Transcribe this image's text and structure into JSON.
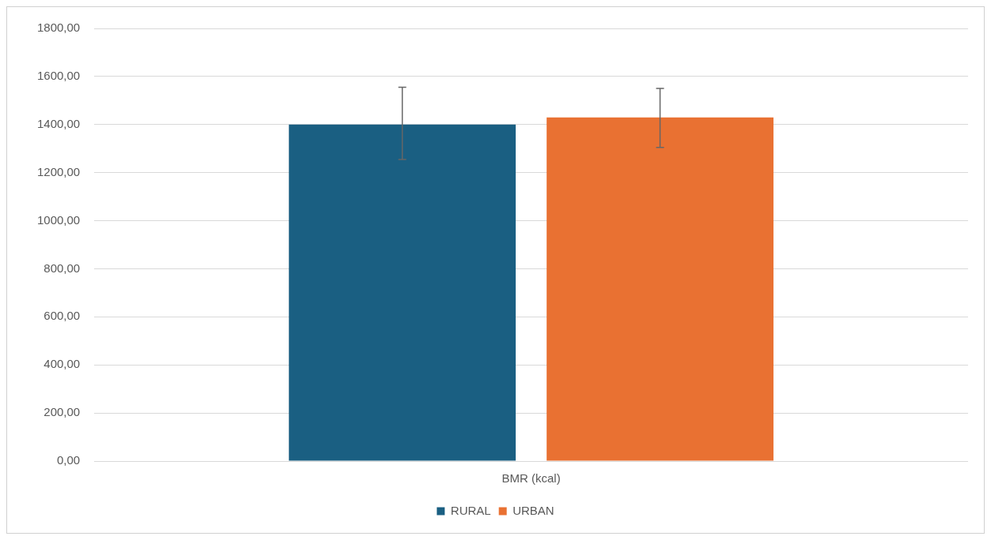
{
  "chart_data": {
    "type": "bar",
    "categories": [
      "BMR (kcal)"
    ],
    "series": [
      {
        "name": "RURAL",
        "color": "#1a5f82",
        "values": [
          1400
        ],
        "errors": [
          [
            1255,
            1555
          ]
        ]
      },
      {
        "name": "URBAN",
        "color": "#e97132",
        "values": [
          1430
        ],
        "errors": [
          [
            1305,
            1550
          ]
        ]
      }
    ],
    "ylim": [
      0,
      1800
    ],
    "yticks": [
      {
        "value": 0,
        "label": "0,00"
      },
      {
        "value": 200,
        "label": "200,00"
      },
      {
        "value": 400,
        "label": "400,00"
      },
      {
        "value": 600,
        "label": "600,00"
      },
      {
        "value": 800,
        "label": "800,00"
      },
      {
        "value": 1000,
        "label": "1000,00"
      },
      {
        "value": 1200,
        "label": "1200,00"
      },
      {
        "value": 1400,
        "label": "1400,00"
      },
      {
        "value": 1600,
        "label": "1600,00"
      },
      {
        "value": 1800,
        "label": "1800,00"
      }
    ],
    "grid": "y",
    "legend": "bottom"
  }
}
